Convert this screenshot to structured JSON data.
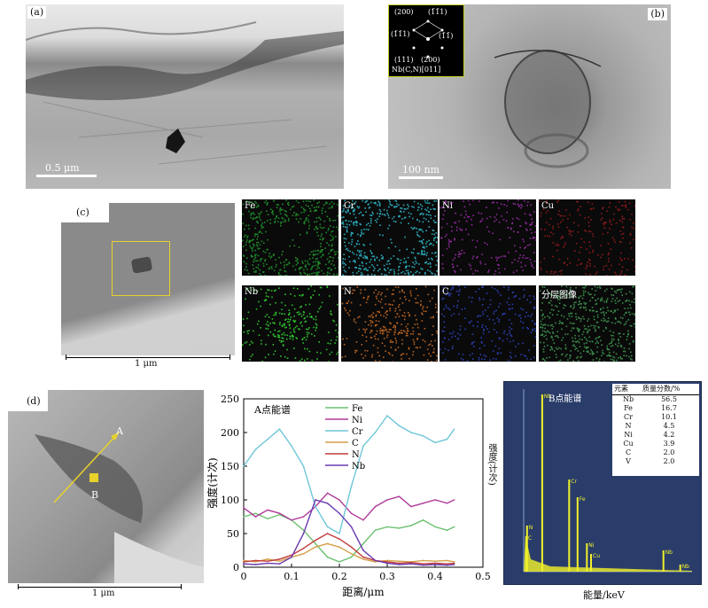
{
  "panels": {
    "a": {
      "label": "(a)",
      "scale": "0.5 μm"
    },
    "b": {
      "label": "(b)",
      "scale": "100 nm",
      "saed": {
        "spots": [
          "(200)",
          "(1̄1̄1)",
          "(1̄1̄1)",
          "(1̄1̄)",
          "(111)",
          "(200)"
        ],
        "caption": "Nb(C,N)[011]"
      }
    },
    "c": {
      "label": "(c)",
      "scale": "1 μm",
      "maps": [
        {
          "element": "Fe",
          "color": "#1f8a2a"
        },
        {
          "element": "Cr",
          "color": "#2aa8b8"
        },
        {
          "element": "Ni",
          "color": "#8e2a9a"
        },
        {
          "element": "Cu",
          "color": "#8a1a1a"
        },
        {
          "element": "Nb",
          "color": "#2fbf2f"
        },
        {
          "element": "N",
          "color": "#b8621f"
        },
        {
          "element": "C",
          "color": "#2a3fb0"
        },
        {
          "element": "分层图像",
          "color": "#3a8a4a"
        }
      ]
    },
    "d": {
      "label": "(d)",
      "scale": "1 μm",
      "pointA": "A",
      "pointB": "B"
    }
  },
  "chart_data": [
    {
      "type": "line",
      "title": "A点能谱",
      "xlabel": "距离/μm",
      "ylabel": "强度(计次)",
      "xlim": [
        0,
        0.5
      ],
      "ylim": [
        0,
        250
      ],
      "xticks": [
        "0",
        "0.1",
        "0.2",
        "0.3",
        "0.4",
        "0.5"
      ],
      "yticks": [
        "0",
        "50",
        "100",
        "150",
        "200",
        "250"
      ],
      "legend_position": "top",
      "x": [
        0,
        0.025,
        0.05,
        0.075,
        0.1,
        0.125,
        0.15,
        0.175,
        0.2,
        0.225,
        0.25,
        0.275,
        0.3,
        0.325,
        0.35,
        0.375,
        0.4,
        0.425,
        0.44
      ],
      "series": [
        {
          "name": "Fe",
          "color": "#6cc070",
          "values": [
            75,
            80,
            72,
            78,
            70,
            55,
            35,
            15,
            8,
            15,
            35,
            55,
            60,
            58,
            62,
            70,
            60,
            55,
            60
          ]
        },
        {
          "name": "Ni",
          "color": "#b03a9a",
          "values": [
            88,
            75,
            85,
            80,
            70,
            75,
            90,
            110,
            100,
            80,
            70,
            90,
            100,
            105,
            90,
            95,
            100,
            95,
            100
          ]
        },
        {
          "name": "Cr",
          "color": "#6ec6d8",
          "values": [
            150,
            175,
            190,
            205,
            180,
            150,
            90,
            60,
            50,
            120,
            180,
            200,
            225,
            210,
            200,
            195,
            185,
            190,
            205
          ]
        },
        {
          "name": "C",
          "color": "#d4a04a",
          "values": [
            10,
            8,
            12,
            9,
            15,
            20,
            30,
            35,
            30,
            20,
            12,
            8,
            10,
            9,
            8,
            10,
            9,
            10,
            8
          ]
        },
        {
          "name": "N",
          "color": "#c23a3a",
          "values": [
            8,
            10,
            9,
            12,
            18,
            28,
            40,
            50,
            42,
            30,
            15,
            10,
            8,
            6,
            7,
            5,
            6,
            5,
            6
          ]
        },
        {
          "name": "Nb",
          "color": "#6a3ab0",
          "values": [
            5,
            4,
            6,
            5,
            15,
            50,
            100,
            95,
            80,
            60,
            25,
            10,
            6,
            4,
            5,
            3,
            4,
            3,
            4
          ]
        }
      ]
    },
    {
      "type": "bar",
      "title": "B点能谱",
      "xlabel": "能量/keV",
      "ylabel": "强度(计次)",
      "table_header": [
        "元素",
        "质量分数/%"
      ],
      "table_rows": [
        [
          "Nb",
          "56.5"
        ],
        [
          "Fe",
          "16.7"
        ],
        [
          "Cr",
          "10.1"
        ],
        [
          "N",
          "4.5"
        ],
        [
          "Ni",
          "4.2"
        ],
        [
          "Cu",
          "3.9"
        ],
        [
          "C",
          "2.0"
        ],
        [
          "V",
          "2.0"
        ]
      ],
      "peaks": [
        {
          "label": "Nb",
          "x": 2.2,
          "value": 100
        },
        {
          "label": "Cr",
          "x": 5.4,
          "value": 52
        },
        {
          "label": "Fe",
          "x": 6.4,
          "value": 42
        },
        {
          "label": "Ni",
          "x": 7.5,
          "value": 16
        },
        {
          "label": "Cu",
          "x": 8.0,
          "value": 10
        },
        {
          "label": "Nb",
          "x": 16.6,
          "value": 12
        },
        {
          "label": "Nb",
          "x": 18.6,
          "value": 4
        },
        {
          "label": "N",
          "x": 0.4,
          "value": 26
        },
        {
          "label": "C",
          "x": 0.3,
          "value": 20
        }
      ]
    }
  ]
}
